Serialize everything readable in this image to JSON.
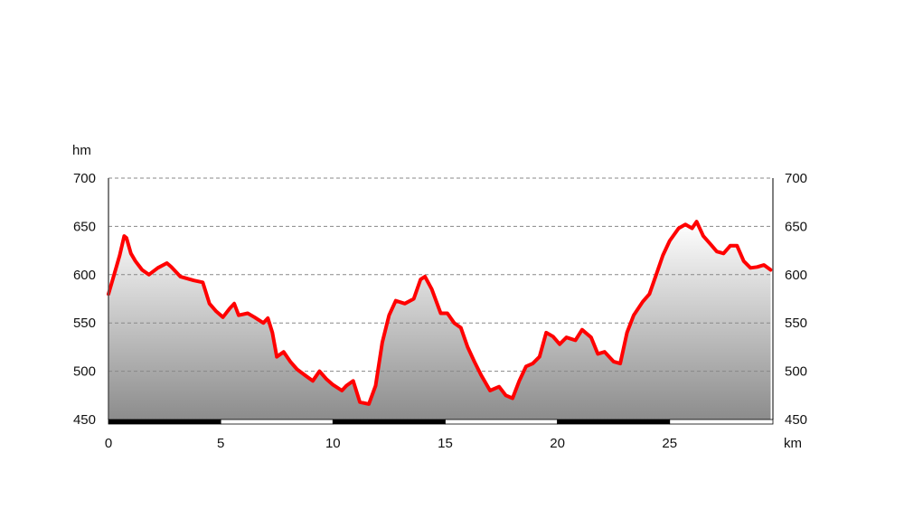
{
  "chart_data": {
    "type": "area",
    "title": "",
    "xlabel": "km",
    "ylabel": "hm",
    "xlim": [
      0,
      29.6
    ],
    "ylim": [
      450,
      700
    ],
    "x_ticks": [
      0,
      5,
      10,
      15,
      20,
      25
    ],
    "y_ticks": [
      450,
      500,
      550,
      600,
      650,
      700
    ],
    "grid": "horizontal-dashed",
    "colors": {
      "line": "#ff0000",
      "fill_top": "#ffffff",
      "fill_bottom": "#8c8c8c",
      "grid": "#888888",
      "axis": "#555555"
    },
    "series": [
      {
        "x": [
          0,
          0.2,
          0.5,
          0.7,
          0.8,
          1.0,
          1.2,
          1.5,
          1.8,
          2.2,
          2.6,
          2.8,
          3.2,
          3.8,
          4.2,
          4.5,
          4.8,
          5.1,
          5.4,
          5.6,
          5.8,
          6.2,
          6.5,
          6.9,
          7.1,
          7.3,
          7.5,
          7.8,
          8.1,
          8.4,
          8.8,
          9.1,
          9.4,
          9.7,
          10.0,
          10.4,
          10.6,
          10.9,
          11.2,
          11.6,
          11.9,
          12.2,
          12.5,
          12.8,
          13.2,
          13.6,
          13.9,
          14.1,
          14.4,
          14.8,
          15.1,
          15.4,
          15.7,
          16.0,
          16.3,
          16.6,
          17.0,
          17.4,
          17.7,
          18.0,
          18.3,
          18.6,
          18.9,
          19.2,
          19.5,
          19.8,
          20.1,
          20.4,
          20.8,
          21.1,
          21.5,
          21.8,
          22.1,
          22.5,
          22.8,
          23.1,
          23.4,
          23.8,
          24.1,
          24.4,
          24.7,
          25.0,
          25.4,
          25.7,
          26.0,
          26.2,
          26.5,
          26.8,
          27.1,
          27.4,
          27.7,
          28.0,
          28.3,
          28.6,
          28.9,
          29.2,
          29.5
        ],
        "values": [
          580,
          596,
          620,
          640,
          638,
          622,
          614,
          605,
          600,
          607,
          612,
          608,
          598,
          594,
          592,
          570,
          562,
          556,
          565,
          570,
          558,
          560,
          556,
          550,
          555,
          540,
          515,
          520,
          510,
          502,
          495,
          490,
          500,
          492,
          486,
          480,
          485,
          490,
          468,
          466,
          485,
          530,
          558,
          573,
          570,
          575,
          595,
          598,
          585,
          560,
          560,
          550,
          545,
          525,
          510,
          496,
          480,
          484,
          475,
          472,
          490,
          505,
          508,
          515,
          540,
          536,
          528,
          535,
          532,
          543,
          535,
          518,
          520,
          510,
          508,
          540,
          558,
          572,
          580,
          600,
          620,
          635,
          648,
          652,
          648,
          655,
          640,
          632,
          624,
          622,
          630,
          630,
          614,
          607,
          608,
          610,
          605
        ]
      }
    ]
  },
  "labels": {
    "y_unit": "hm",
    "x_unit": "km",
    "y_ticks_text": [
      "700",
      "650",
      "600",
      "550",
      "500",
      "450"
    ],
    "x_ticks_text": [
      "0",
      "5",
      "10",
      "15",
      "20",
      "25"
    ]
  }
}
